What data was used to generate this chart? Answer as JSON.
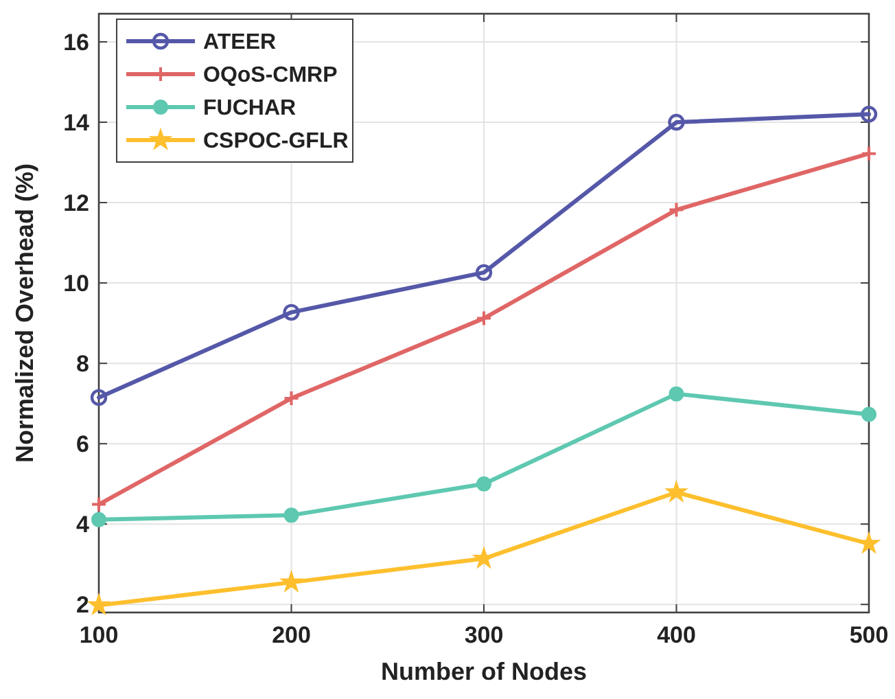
{
  "chart_data": {
    "type": "line",
    "xlabel": "Number of Nodes",
    "ylabel": "Normalized Overhead (%)",
    "x": [
      100,
      200,
      300,
      400,
      500
    ],
    "series": [
      {
        "name": "ATEER",
        "color": "#5558a8",
        "marker": "circle",
        "values": [
          7.15,
          9.27,
          10.26,
          14.0,
          14.2
        ]
      },
      {
        "name": "OQoS-CMRP",
        "color": "#e06666",
        "marker": "cross",
        "values": [
          4.49,
          7.13,
          9.12,
          11.82,
          13.22
        ]
      },
      {
        "name": "FUCHAR",
        "color": "#5ec8b0",
        "marker": "circle",
        "values": [
          4.11,
          4.22,
          5.0,
          7.24,
          6.73
        ]
      },
      {
        "name": "CSPOC-GFLR",
        "color": "#fdbf2d",
        "marker": "star",
        "values": [
          1.98,
          2.55,
          3.14,
          4.79,
          3.51
        ]
      }
    ],
    "xlim": [
      100,
      500
    ],
    "xticks": [
      100,
      200,
      300,
      400,
      500
    ],
    "ylim": [
      1.8,
      16.7
    ],
    "yticks": [
      2,
      4,
      6,
      8,
      10,
      12,
      14,
      16
    ],
    "grid": true,
    "legend": "top left",
    "line_style": "solid"
  }
}
